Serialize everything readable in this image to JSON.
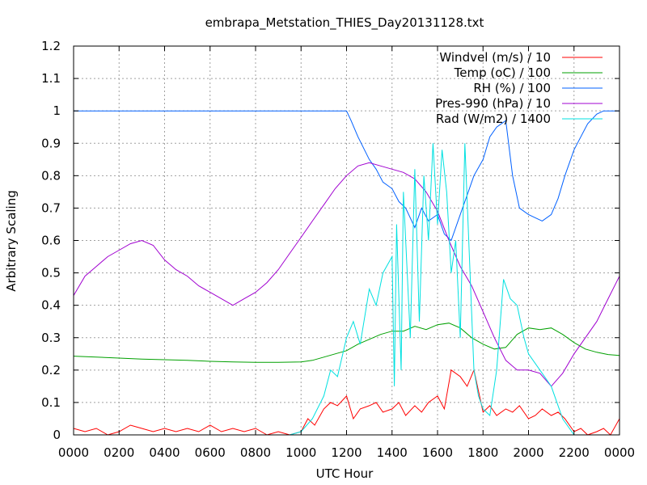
{
  "chart_data": {
    "type": "line",
    "title": "embrapa_Metstation_THIES_Day20131128.txt",
    "xlabel": "UTC Hour",
    "ylabel": "Arbitrary Scaling",
    "xlim": [
      0,
      24
    ],
    "ylim": [
      0,
      1.2
    ],
    "x_ticks": [
      "0000",
      "0200",
      "0400",
      "0600",
      "0800",
      "1000",
      "1200",
      "1400",
      "1600",
      "1800",
      "2000",
      "2200",
      "0000"
    ],
    "y_ticks": [
      "0",
      "0.1",
      "0.2",
      "0.3",
      "0.4",
      "0.5",
      "0.6",
      "0.7",
      "0.8",
      "0.9",
      "1",
      "1.1",
      "1.2"
    ],
    "grid": true,
    "legend_position": "top-right",
    "series": [
      {
        "name": "Windvel (m/s) / 10",
        "color": "#ff0000",
        "x": [
          0,
          0.5,
          1,
          1.5,
          2,
          2.5,
          3,
          3.5,
          4,
          4.5,
          5,
          5.5,
          6,
          6.5,
          7,
          7.5,
          8,
          8.5,
          9,
          9.5,
          10,
          10.3,
          10.6,
          11,
          11.3,
          11.6,
          12,
          12.3,
          12.6,
          13,
          13.3,
          13.6,
          14,
          14.3,
          14.6,
          15,
          15.3,
          15.6,
          16,
          16.3,
          16.6,
          17,
          17.3,
          17.6,
          18,
          18.3,
          18.6,
          19,
          19.3,
          19.6,
          20,
          20.3,
          20.6,
          21,
          21.3,
          21.6,
          22,
          22.3,
          22.6,
          23,
          23.3,
          23.6,
          24
        ],
        "y": [
          0.02,
          0.01,
          0.02,
          0.0,
          0.01,
          0.03,
          0.02,
          0.01,
          0.02,
          0.01,
          0.02,
          0.01,
          0.03,
          0.01,
          0.02,
          0.01,
          0.02,
          0.0,
          0.01,
          0.0,
          0.01,
          0.05,
          0.03,
          0.08,
          0.1,
          0.09,
          0.12,
          0.05,
          0.08,
          0.09,
          0.1,
          0.07,
          0.08,
          0.1,
          0.06,
          0.09,
          0.07,
          0.1,
          0.12,
          0.08,
          0.2,
          0.18,
          0.15,
          0.2,
          0.07,
          0.09,
          0.06,
          0.08,
          0.07,
          0.09,
          0.05,
          0.06,
          0.08,
          0.06,
          0.07,
          0.05,
          0.01,
          0.02,
          0.0,
          0.01,
          0.02,
          0.0,
          0.05
        ]
      },
      {
        "name": "Temp (oC) / 100",
        "color": "#00a000",
        "x": [
          0,
          1,
          2,
          3,
          4,
          5,
          6,
          7,
          8,
          9,
          10,
          10.5,
          11,
          11.5,
          12,
          12.5,
          13,
          13.5,
          14,
          14.5,
          15,
          15.5,
          16,
          16.5,
          17,
          17.5,
          18,
          18.5,
          19,
          19.5,
          20,
          20.5,
          21,
          21.5,
          22,
          22.5,
          23,
          23.5,
          24
        ],
        "y": [
          0.243,
          0.24,
          0.237,
          0.234,
          0.232,
          0.23,
          0.227,
          0.225,
          0.224,
          0.224,
          0.225,
          0.23,
          0.24,
          0.25,
          0.26,
          0.28,
          0.295,
          0.31,
          0.32,
          0.32,
          0.335,
          0.325,
          0.34,
          0.345,
          0.33,
          0.3,
          0.28,
          0.265,
          0.27,
          0.31,
          0.33,
          0.325,
          0.33,
          0.31,
          0.285,
          0.265,
          0.255,
          0.248,
          0.245
        ]
      },
      {
        "name": "RH (%) / 100",
        "color": "#0060ff",
        "x": [
          0,
          2,
          4,
          6,
          8,
          10,
          11,
          12,
          12.2,
          12.5,
          13,
          13.3,
          13.6,
          14,
          14.3,
          14.6,
          15,
          15.3,
          15.6,
          16,
          16.3,
          16.6,
          17,
          17.3,
          17.6,
          18,
          18.3,
          18.6,
          19,
          19.3,
          19.6,
          20,
          20.3,
          20.6,
          21,
          21.3,
          21.6,
          22,
          22.3,
          22.6,
          23,
          23.3,
          24
        ],
        "y": [
          1.0,
          1.0,
          1.0,
          1.0,
          1.0,
          1.0,
          1.0,
          1.0,
          0.97,
          0.92,
          0.85,
          0.82,
          0.78,
          0.76,
          0.72,
          0.7,
          0.64,
          0.7,
          0.66,
          0.68,
          0.62,
          0.6,
          0.68,
          0.74,
          0.8,
          0.85,
          0.92,
          0.95,
          0.97,
          0.8,
          0.7,
          0.68,
          0.67,
          0.66,
          0.68,
          0.73,
          0.8,
          0.88,
          0.92,
          0.96,
          0.99,
          1.0,
          1.0
        ]
      },
      {
        "name": "Pres-990 (hPa) / 10",
        "color": "#a000d0",
        "x": [
          0,
          0.5,
          1,
          1.5,
          2,
          2.5,
          3,
          3.5,
          4,
          4.5,
          5,
          5.5,
          6,
          6.5,
          7,
          7.5,
          8,
          8.5,
          9,
          9.5,
          10,
          10.5,
          11,
          11.5,
          12,
          12.5,
          13,
          13.5,
          14,
          14.5,
          15,
          15.5,
          16,
          16.5,
          17,
          17.5,
          18,
          18.5,
          19,
          19.5,
          20,
          20.5,
          21,
          21.5,
          22,
          22.5,
          23,
          23.5,
          24
        ],
        "y": [
          0.43,
          0.49,
          0.52,
          0.55,
          0.57,
          0.59,
          0.6,
          0.585,
          0.54,
          0.51,
          0.49,
          0.46,
          0.44,
          0.42,
          0.4,
          0.42,
          0.44,
          0.47,
          0.51,
          0.56,
          0.61,
          0.66,
          0.71,
          0.76,
          0.8,
          0.83,
          0.84,
          0.83,
          0.82,
          0.81,
          0.79,
          0.75,
          0.69,
          0.6,
          0.52,
          0.46,
          0.38,
          0.3,
          0.23,
          0.2,
          0.2,
          0.19,
          0.15,
          0.19,
          0.25,
          0.3,
          0.35,
          0.42,
          0.49
        ]
      },
      {
        "name": "Rad (W/m2) / 1400",
        "color": "#00e0e0",
        "x": [
          0,
          2,
          4,
          6,
          8,
          9.5,
          10,
          10.5,
          11,
          11.3,
          11.6,
          12,
          12.3,
          12.6,
          13,
          13.3,
          13.6,
          14,
          14.1,
          14.2,
          14.4,
          14.5,
          14.8,
          15,
          15.2,
          15.4,
          15.6,
          15.8,
          16,
          16.2,
          16.4,
          16.6,
          16.8,
          17,
          17.2,
          17.4,
          17.6,
          17.8,
          18,
          18.3,
          18.6,
          18.9,
          19.2,
          19.5,
          19.8,
          20,
          20.5,
          21,
          21.5,
          22,
          24
        ],
        "y": [
          0.0,
          0.0,
          0.0,
          0.0,
          0.0,
          0.0,
          0.01,
          0.05,
          0.12,
          0.2,
          0.18,
          0.3,
          0.35,
          0.28,
          0.45,
          0.4,
          0.5,
          0.55,
          0.15,
          0.65,
          0.2,
          0.75,
          0.3,
          0.82,
          0.35,
          0.8,
          0.6,
          0.9,
          0.65,
          0.88,
          0.75,
          0.5,
          0.6,
          0.3,
          0.9,
          0.55,
          0.2,
          0.12,
          0.08,
          0.06,
          0.2,
          0.48,
          0.42,
          0.4,
          0.3,
          0.25,
          0.2,
          0.15,
          0.05,
          0.0,
          0.0
        ]
      }
    ]
  }
}
